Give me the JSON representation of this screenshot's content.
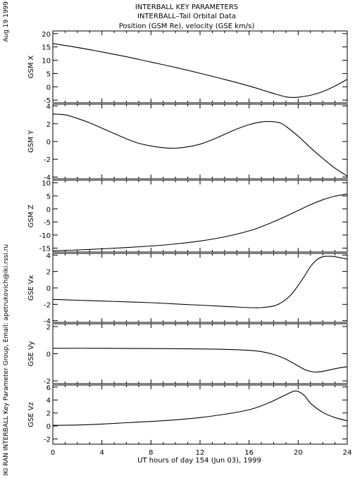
{
  "header": {
    "title_line1": "INTERBALL KEY PARAMETERS",
    "title_line2": "INTERBALL–Tail Orbital Data",
    "title_line3": "Position (GSM Re), velocity (GSE km/s)"
  },
  "side": {
    "date_stamp": "Aug 19 1999",
    "credit": "IKI RAN INTERBALL Key Parameter Group, Email: apetrukovich@iki.rssi.ru"
  },
  "colors": {
    "background": "#ffffff",
    "ink": "#000000"
  },
  "chart_data": {
    "type": "line",
    "xlabel": "UT hours of day 154 (Jun 03), 1999",
    "xlim": [
      0,
      24
    ],
    "xticks": [
      "0",
      "4",
      "8",
      "12",
      "16",
      "20",
      "24"
    ],
    "panels": [
      {
        "ylabel": "GSM X",
        "ylim": [
          -6,
          21
        ],
        "yticks": [
          "-5",
          "0",
          "5",
          "10",
          "15",
          "20"
        ],
        "series": [
          {
            "x": [
              0,
              2,
              4,
              6,
              8,
              10,
              12,
              14,
              16,
              18,
              19,
              19.6,
              20,
              21,
              22,
              23,
              24
            ],
            "y": [
              16.3,
              14.8,
              13.1,
              11.3,
              9.3,
              7.3,
              5.1,
              2.8,
              0.3,
              -2.5,
              -3.8,
              -4.0,
              -3.9,
              -3.2,
              -1.8,
              0.3,
              2.8
            ]
          }
        ]
      },
      {
        "ylabel": "GSM Y",
        "ylim": [
          -4.2,
          4.2
        ],
        "yticks": [
          "-4",
          "-2",
          "0",
          "2",
          "4"
        ],
        "series": [
          {
            "x": [
              0,
              1,
              2,
              3,
              4,
              5,
              6,
              7,
              8,
              9,
              10,
              11,
              12,
              13,
              14,
              15,
              16,
              17,
              17.7,
              18.5,
              19,
              20,
              21,
              22,
              23,
              24
            ],
            "y": [
              3.1,
              3.0,
              2.6,
              2.1,
              1.5,
              0.9,
              0.3,
              -0.2,
              -0.5,
              -0.7,
              -0.75,
              -0.6,
              -0.3,
              0.2,
              0.8,
              1.4,
              1.9,
              2.2,
              2.25,
              2.1,
              1.7,
              0.6,
              -0.7,
              -1.9,
              -3.0,
              -3.9
            ]
          }
        ]
      },
      {
        "ylabel": "GSM Z",
        "ylim": [
          -16.5,
          11
        ],
        "yticks": [
          "-15",
          "-10",
          "-5",
          "0",
          "5",
          "10"
        ],
        "series": [
          {
            "x": [
              0,
              2,
              4,
              6,
              8,
              10,
              12,
              14,
              16,
              17,
              18,
              19,
              20,
              21,
              22,
              23,
              24
            ],
            "y": [
              -16.0,
              -15.7,
              -15.3,
              -14.8,
              -14.2,
              -13.4,
              -12.3,
              -10.7,
              -8.4,
              -6.8,
              -4.9,
              -2.8,
              -0.6,
              1.6,
              3.5,
              4.9,
              5.7
            ]
          }
        ]
      },
      {
        "ylabel": "GSE Vx",
        "ylim": [
          -4.2,
          4.2
        ],
        "yticks": [
          "-4",
          "-2",
          "0",
          "2",
          "4"
        ],
        "series": [
          {
            "x": [
              0,
              2,
              4,
              6,
              8,
              10,
              12,
              14,
              16,
              17,
              18,
              18.5,
              19,
              19.5,
              20,
              20.5,
              21,
              21.5,
              22,
              22.5,
              23,
              24
            ],
            "y": [
              -1.4,
              -1.5,
              -1.6,
              -1.7,
              -1.8,
              -1.95,
              -2.1,
              -2.25,
              -2.4,
              -2.4,
              -2.2,
              -1.9,
              -1.4,
              -0.7,
              0.3,
              1.4,
              2.6,
              3.4,
              3.8,
              3.85,
              3.8,
              3.5
            ]
          }
        ]
      },
      {
        "ylabel": "GSE Vy",
        "ylim": [
          -2.2,
          2.2
        ],
        "yticks": [
          "-2",
          "0",
          "2"
        ],
        "series": [
          {
            "x": [
              0,
              4,
              8,
              12,
              14,
              16,
              17,
              18,
              19,
              20,
              20.5,
              21,
              21.5,
              22,
              23,
              24
            ],
            "y": [
              0.4,
              0.4,
              0.38,
              0.35,
              0.32,
              0.25,
              0.15,
              -0.05,
              -0.4,
              -0.9,
              -1.15,
              -1.3,
              -1.35,
              -1.3,
              -1.1,
              -0.95
            ]
          }
        ]
      },
      {
        "ylabel": "GSE Vz",
        "ylim": [
          -2.8,
          6.3
        ],
        "yticks": [
          "-2",
          "0",
          "2",
          "4",
          "6"
        ],
        "series": [
          {
            "x": [
              0,
              2,
              4,
              6,
              8,
              10,
              12,
              14,
              16,
              17,
              18,
              19,
              19.8,
              20.5,
              21,
              22,
              23,
              24
            ],
            "y": [
              0.1,
              0.15,
              0.3,
              0.5,
              0.7,
              0.95,
              1.3,
              1.8,
              2.5,
              3.1,
              3.9,
              4.8,
              5.4,
              4.7,
              3.5,
              2.1,
              1.3,
              0.8
            ]
          }
        ]
      }
    ]
  }
}
